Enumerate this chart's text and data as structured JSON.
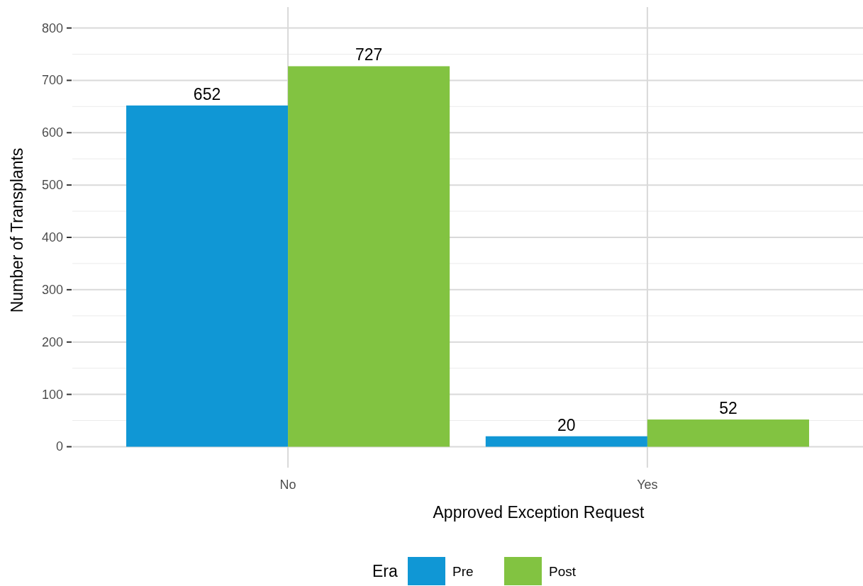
{
  "chart_data": {
    "type": "bar",
    "xlabel": "Approved Exception Request",
    "ylabel": "Number of Transplants",
    "legend_title": "Era",
    "categories": [
      "No",
      "Yes"
    ],
    "series": [
      {
        "name": "Pre",
        "color": "#1097d5",
        "values": [
          652,
          20
        ]
      },
      {
        "name": "Post",
        "color": "#82c341",
        "values": [
          727,
          52
        ]
      }
    ],
    "ylim": [
      -40,
      840
    ],
    "yticks": [
      0,
      100,
      200,
      300,
      400,
      500,
      600,
      700,
      800
    ],
    "grid": true,
    "legend": "bottom",
    "data_labels": true
  }
}
